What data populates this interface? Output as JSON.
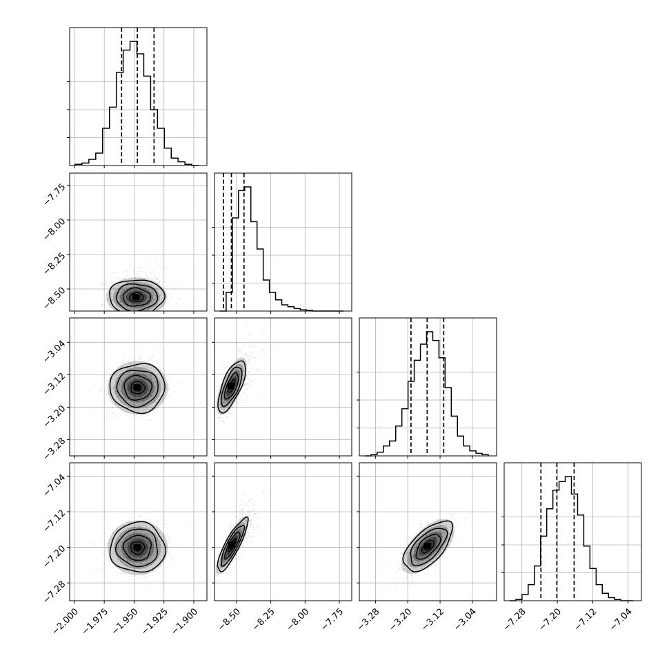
{
  "chart_data": {
    "type": "corner",
    "grid": true,
    "n_params": 4,
    "parameters": [
      {
        "ticks": [
          -2.0,
          -1.975,
          -1.95,
          -1.925,
          -1.9
        ],
        "labels": [
          "−2.000",
          "−1.975",
          "−1.950",
          "−1.925",
          "−1.900"
        ],
        "range": [
          -2.004,
          -1.889
        ],
        "quantiles": [
          -1.9605,
          -1.9473,
          -1.9333
        ]
      },
      {
        "ticks": [
          -8.5,
          -8.25,
          -8.0,
          -7.75
        ],
        "labels": [
          "−8.50",
          "−8.25",
          "−8.00",
          "−7.75"
        ],
        "range": [
          -8.66,
          -7.66
        ],
        "quantiles": [
          -8.595,
          -8.537,
          -8.445
        ]
      },
      {
        "ticks": [
          -3.28,
          -3.2,
          -3.12,
          -3.04
        ],
        "labels": [
          "−3.28",
          "−3.20",
          "−3.12",
          "−3.04"
        ],
        "range": [
          -3.32,
          -2.98
        ],
        "quantiles": [
          -3.192,
          -3.152,
          -3.111
        ]
      },
      {
        "ticks": [
          -7.28,
          -7.2,
          -7.12,
          -7.04
        ],
        "labels": [
          "−7.28",
          "−7.20",
          "−7.12",
          "−7.04"
        ],
        "range": [
          -7.32,
          -7.01
        ],
        "quantiles": [
          -7.237,
          -7.201,
          -7.162
        ]
      }
    ],
    "histograms": [
      [
        0.01,
        0.02,
        0.05,
        0.1,
        0.3,
        0.47,
        0.75,
        0.93,
        1.0,
        0.9,
        0.72,
        0.45,
        0.3,
        0.14,
        0.06,
        0.03,
        0.01,
        0.0
      ],
      [
        0.0,
        0.15,
        0.75,
        0.97,
        1.0,
        0.72,
        0.5,
        0.25,
        0.15,
        0.09,
        0.05,
        0.035,
        0.02,
        0.01,
        0.005,
        0.0,
        0.0,
        0.0,
        0.0,
        0.0
      ],
      [
        0.0,
        0.01,
        0.03,
        0.08,
        0.12,
        0.24,
        0.38,
        0.6,
        0.77,
        0.9,
        1.0,
        0.93,
        0.79,
        0.55,
        0.32,
        0.16,
        0.08,
        0.04,
        0.02,
        0.01
      ],
      [
        0.0,
        0.01,
        0.05,
        0.13,
        0.28,
        0.52,
        0.74,
        0.89,
        0.96,
        1.0,
        0.86,
        0.69,
        0.44,
        0.26,
        0.13,
        0.06,
        0.025,
        0.01,
        0.0,
        0.0
      ]
    ],
    "pairs": [
      {
        "xi": 0,
        "yi": 1,
        "mx": -1.948,
        "my": -8.56,
        "sx": 0.0115,
        "sy": 0.065,
        "rho": 0.0,
        "skew": [
          0.04,
          0.65
        ]
      },
      {
        "xi": 0,
        "yi": 2,
        "mx": -1.947,
        "my": -3.152,
        "sx": 0.0115,
        "sy": 0.03,
        "rho": 0.0
      },
      {
        "xi": 1,
        "yi": 2,
        "mx": -8.535,
        "my": -3.148,
        "sx": 0.05,
        "sy": 0.032,
        "rho": 0.68,
        "skew": [
          0.7,
          0.5
        ]
      },
      {
        "xi": 0,
        "yi": 3,
        "mx": -1.947,
        "my": -7.201,
        "sx": 0.0115,
        "sy": 0.028,
        "rho": 0.0
      },
      {
        "xi": 1,
        "yi": 3,
        "mx": -8.53,
        "my": -7.195,
        "sx": 0.055,
        "sy": 0.03,
        "rho": 0.85,
        "skew": [
          0.7,
          0.55
        ]
      },
      {
        "xi": 2,
        "yi": 3,
        "mx": -3.15,
        "my": -7.198,
        "sx": 0.03,
        "sy": 0.028,
        "rho": 0.62
      }
    ]
  }
}
